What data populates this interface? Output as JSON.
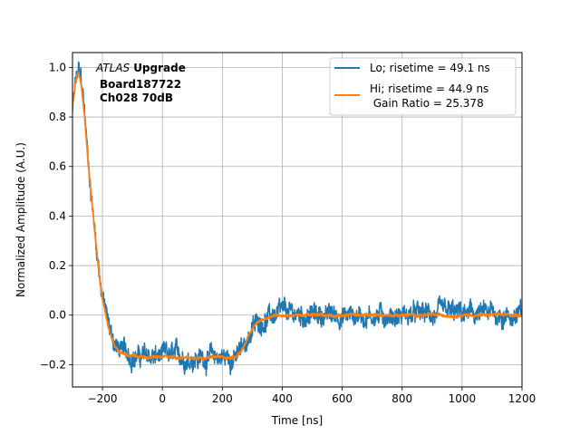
{
  "chart_data": {
    "type": "line",
    "title": "",
    "xlabel": "Time [ns]",
    "ylabel": "Normalized Amplitude (A.U.)",
    "xlim": [
      -300,
      1200
    ],
    "ylim": [
      -0.29,
      1.06
    ],
    "xticks": [
      -200,
      0,
      200,
      400,
      600,
      800,
      1000,
      1200
    ],
    "yticks": [
      -0.2,
      0.0,
      0.2,
      0.4,
      0.6,
      0.8,
      1.0
    ],
    "xtick_labels": [
      "−200",
      "0",
      "200",
      "400",
      "600",
      "800",
      "1000",
      "1200"
    ],
    "ytick_labels": [
      "−0.2",
      "0.0",
      "0.2",
      "0.4",
      "0.6",
      "0.8",
      "1.0"
    ],
    "grid": true,
    "legend_position": "top-right",
    "annotation": {
      "line1_italic": "ATLAS",
      "line1_bold": "Upgrade",
      "line2": "Board187722",
      "line3": "Ch028 70dB"
    },
    "series": [
      {
        "name": "Lo; risetime = 49.1 ns",
        "legend_label": "Lo; risetime = 49.1 ns",
        "color": "#1f77b4",
        "noise": 0.028,
        "x": [
          -300,
          -290,
          -280,
          -270,
          -260,
          -250,
          -240,
          -230,
          -220,
          -210,
          -200,
          -190,
          -180,
          -170,
          -160,
          -150,
          -140,
          -130,
          -120,
          -100,
          -80,
          -50,
          0,
          50,
          100,
          150,
          200,
          240,
          250,
          270,
          290,
          310,
          330,
          350,
          370,
          400,
          500,
          600,
          700,
          800,
          900,
          1000,
          1100,
          1200
        ],
        "y": [
          0.83,
          0.93,
          0.98,
          0.94,
          0.82,
          0.66,
          0.52,
          0.4,
          0.28,
          0.17,
          0.08,
          0.02,
          -0.04,
          -0.08,
          -0.11,
          -0.13,
          -0.14,
          -0.15,
          -0.155,
          -0.16,
          -0.165,
          -0.17,
          -0.17,
          -0.17,
          -0.17,
          -0.17,
          -0.17,
          -0.17,
          -0.165,
          -0.13,
          -0.08,
          -0.04,
          -0.02,
          -0.01,
          0.0,
          0.0,
          0.0,
          0.0,
          0.0,
          0.0,
          0.0,
          0.0,
          0.0,
          0.0
        ]
      },
      {
        "name": "Hi; risetime = 44.9 ns",
        "legend_label": "Hi; risetime = 44.9 ns",
        "legend_label_2": " Gain Ratio = 25.378",
        "color": "#ff7f0e",
        "noise": 0.004,
        "x": [
          -300,
          -290,
          -280,
          -270,
          -260,
          -250,
          -240,
          -230,
          -220,
          -210,
          -200,
          -190,
          -180,
          -170,
          -160,
          -150,
          -140,
          -130,
          -120,
          -100,
          -80,
          -50,
          0,
          50,
          100,
          150,
          200,
          240,
          250,
          270,
          290,
          310,
          330,
          350,
          370,
          400,
          500,
          600,
          700,
          800,
          900,
          1000,
          1100,
          1200
        ],
        "y": [
          0.84,
          0.94,
          0.985,
          0.93,
          0.81,
          0.65,
          0.51,
          0.39,
          0.27,
          0.16,
          0.07,
          0.01,
          -0.05,
          -0.09,
          -0.12,
          -0.14,
          -0.15,
          -0.155,
          -0.16,
          -0.165,
          -0.168,
          -0.17,
          -0.17,
          -0.17,
          -0.17,
          -0.17,
          -0.17,
          -0.17,
          -0.165,
          -0.13,
          -0.08,
          -0.04,
          -0.02,
          -0.01,
          0.0,
          0.0,
          0.0,
          0.0,
          0.0,
          0.0,
          0.0,
          0.0,
          0.0,
          0.0
        ]
      }
    ]
  }
}
